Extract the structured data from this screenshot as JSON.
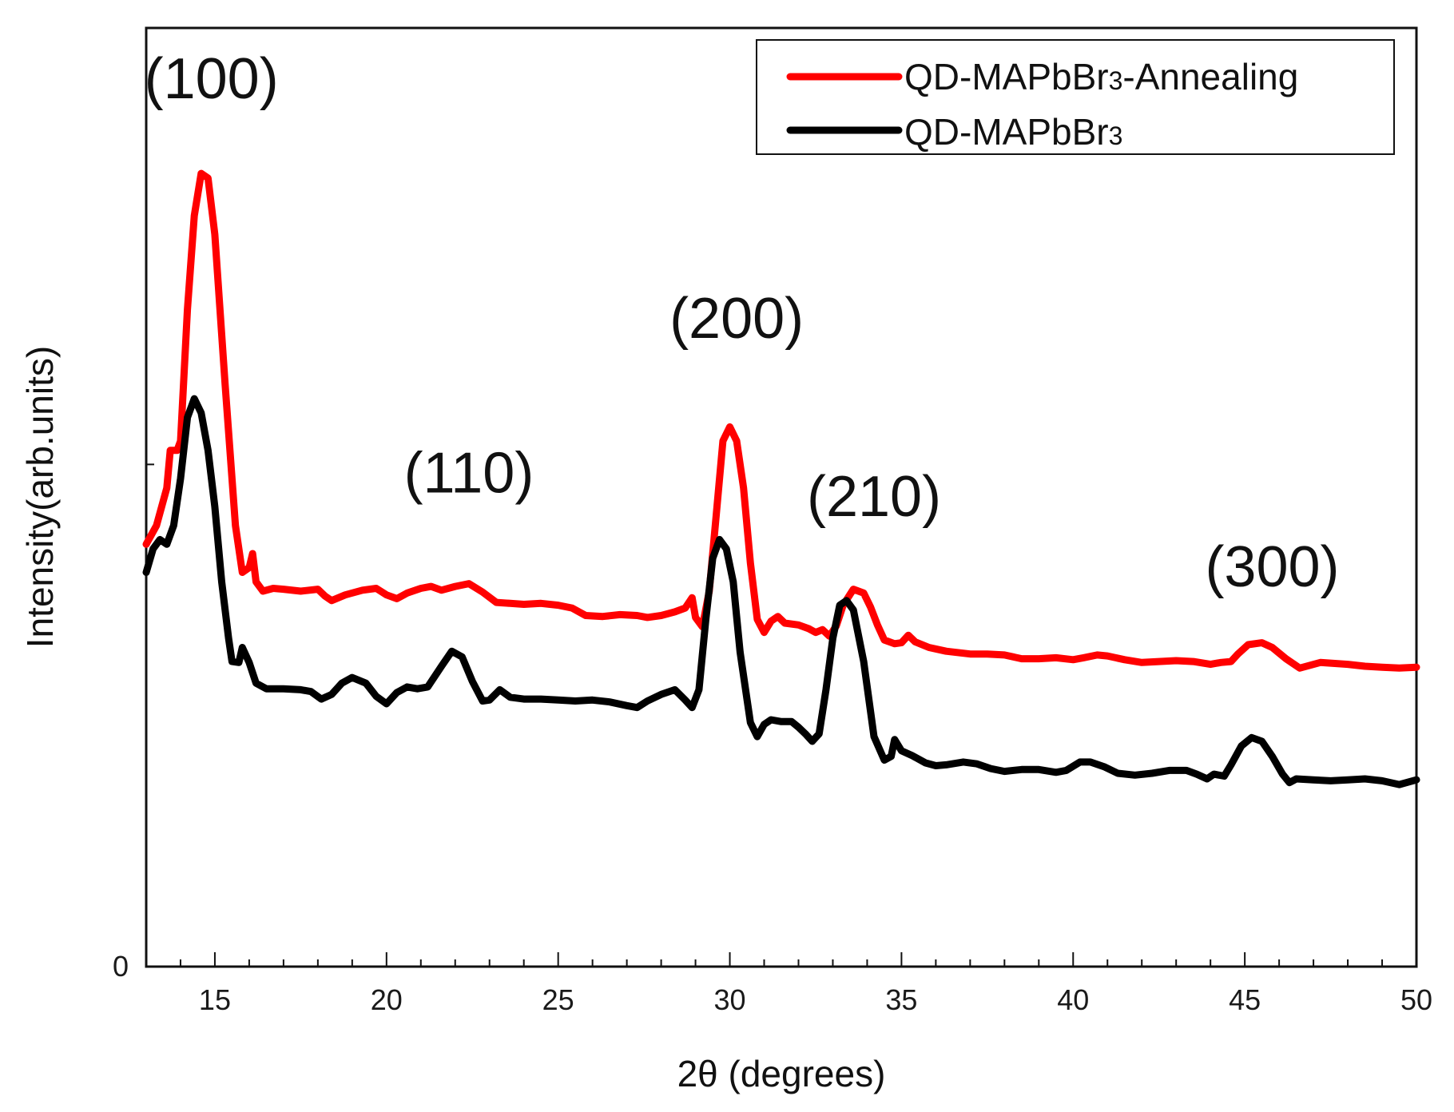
{
  "chart_data": {
    "type": "line",
    "title": "",
    "xlabel": "2θ (degrees)",
    "ylabel": "Intensity(arb.units)",
    "xlim": [
      13,
      50
    ],
    "ylim": [
      0,
      100
    ],
    "x_ticks": [
      15,
      20,
      25,
      30,
      35,
      40,
      45,
      50
    ],
    "y_ticks": [
      {
        "value": 0,
        "label": "0"
      },
      {
        "value": 53.5,
        "label": ""
      }
    ],
    "grid": false,
    "legend_position": "top-right",
    "series": [
      {
        "name": "QD-MAPbBr3-Annealing",
        "legend_main": "QD-MAPbBr",
        "legend_sub": "3",
        "legend_tail": "-Annealing",
        "color": "#ff0000",
        "points": [
          [
            13.0,
            45
          ],
          [
            13.3,
            47
          ],
          [
            13.6,
            51
          ],
          [
            13.7,
            55
          ],
          [
            13.9,
            55
          ],
          [
            14.0,
            56
          ],
          [
            14.2,
            70
          ],
          [
            14.4,
            80
          ],
          [
            14.6,
            84.5
          ],
          [
            14.8,
            84
          ],
          [
            15.0,
            78
          ],
          [
            15.3,
            62
          ],
          [
            15.6,
            47
          ],
          [
            15.8,
            42
          ],
          [
            16.0,
            42.5
          ],
          [
            16.1,
            44
          ],
          [
            16.2,
            41
          ],
          [
            16.4,
            40
          ],
          [
            16.7,
            40.3
          ],
          [
            17.0,
            40.2
          ],
          [
            17.5,
            40
          ],
          [
            18.0,
            40.2
          ],
          [
            18.2,
            39.5
          ],
          [
            18.4,
            39
          ],
          [
            18.8,
            39.6
          ],
          [
            19.3,
            40.1
          ],
          [
            19.7,
            40.3
          ],
          [
            20.0,
            39.6
          ],
          [
            20.3,
            39.2
          ],
          [
            20.6,
            39.8
          ],
          [
            21.0,
            40.3
          ],
          [
            21.3,
            40.5
          ],
          [
            21.6,
            40.1
          ],
          [
            22.0,
            40.5
          ],
          [
            22.4,
            40.8
          ],
          [
            22.8,
            39.9
          ],
          [
            23.2,
            38.8
          ],
          [
            23.6,
            38.7
          ],
          [
            24.0,
            38.6
          ],
          [
            24.5,
            38.7
          ],
          [
            25.0,
            38.5
          ],
          [
            25.4,
            38.2
          ],
          [
            25.8,
            37.4
          ],
          [
            26.3,
            37.3
          ],
          [
            26.8,
            37.5
          ],
          [
            27.3,
            37.4
          ],
          [
            27.6,
            37.2
          ],
          [
            28.0,
            37.4
          ],
          [
            28.4,
            37.8
          ],
          [
            28.7,
            38.2
          ],
          [
            28.9,
            39.3
          ],
          [
            29.0,
            37.2
          ],
          [
            29.2,
            36.2
          ],
          [
            29.4,
            40
          ],
          [
            29.6,
            48
          ],
          [
            29.8,
            56
          ],
          [
            30.0,
            57.5
          ],
          [
            30.2,
            56
          ],
          [
            30.4,
            51
          ],
          [
            30.6,
            43
          ],
          [
            30.8,
            37
          ],
          [
            31.0,
            35.6
          ],
          [
            31.2,
            36.8
          ],
          [
            31.4,
            37.3
          ],
          [
            31.6,
            36.6
          ],
          [
            32.0,
            36.4
          ],
          [
            32.3,
            36
          ],
          [
            32.5,
            35.6
          ],
          [
            32.7,
            35.9
          ],
          [
            32.9,
            35.2
          ],
          [
            33.1,
            36.3
          ],
          [
            33.3,
            38.5
          ],
          [
            33.6,
            40.2
          ],
          [
            33.9,
            39.8
          ],
          [
            34.1,
            38.3
          ],
          [
            34.3,
            36.4
          ],
          [
            34.5,
            34.8
          ],
          [
            34.8,
            34.4
          ],
          [
            35.0,
            34.5
          ],
          [
            35.2,
            35.3
          ],
          [
            35.4,
            34.6
          ],
          [
            35.8,
            34
          ],
          [
            36.3,
            33.6
          ],
          [
            37.0,
            33.3
          ],
          [
            37.5,
            33.3
          ],
          [
            38.0,
            33.2
          ],
          [
            38.5,
            32.8
          ],
          [
            39.0,
            32.8
          ],
          [
            39.5,
            32.9
          ],
          [
            40.0,
            32.7
          ],
          [
            40.3,
            32.9
          ],
          [
            40.7,
            33.2
          ],
          [
            41.0,
            33.1
          ],
          [
            41.5,
            32.7
          ],
          [
            42.0,
            32.4
          ],
          [
            42.5,
            32.5
          ],
          [
            43.0,
            32.6
          ],
          [
            43.5,
            32.5
          ],
          [
            44.0,
            32.2
          ],
          [
            44.3,
            32.4
          ],
          [
            44.6,
            32.5
          ],
          [
            44.8,
            33.3
          ],
          [
            45.1,
            34.3
          ],
          [
            45.5,
            34.5
          ],
          [
            45.8,
            34
          ],
          [
            46.2,
            32.8
          ],
          [
            46.6,
            31.8
          ],
          [
            46.9,
            32.1
          ],
          [
            47.2,
            32.4
          ],
          [
            48.0,
            32.2
          ],
          [
            48.5,
            32
          ],
          [
            49.0,
            31.9
          ],
          [
            49.5,
            31.8
          ],
          [
            50.0,
            31.9
          ]
        ]
      },
      {
        "name": "QD-MAPbBr3",
        "legend_main": "QD-MAPbBr",
        "legend_sub": "3",
        "legend_tail": "",
        "color": "#000000",
        "points": [
          [
            13.0,
            42
          ],
          [
            13.2,
            44.5
          ],
          [
            13.4,
            45.5
          ],
          [
            13.6,
            45
          ],
          [
            13.8,
            47
          ],
          [
            14.0,
            52
          ],
          [
            14.2,
            58.5
          ],
          [
            14.4,
            60.5
          ],
          [
            14.6,
            59
          ],
          [
            14.8,
            55
          ],
          [
            15.0,
            49
          ],
          [
            15.2,
            41
          ],
          [
            15.4,
            35
          ],
          [
            15.5,
            32.5
          ],
          [
            15.7,
            32.4
          ],
          [
            15.8,
            34
          ],
          [
            16.0,
            32.4
          ],
          [
            16.2,
            30.2
          ],
          [
            16.5,
            29.6
          ],
          [
            17.0,
            29.6
          ],
          [
            17.5,
            29.5
          ],
          [
            17.8,
            29.3
          ],
          [
            18.1,
            28.5
          ],
          [
            18.4,
            29
          ],
          [
            18.7,
            30.2
          ],
          [
            19.0,
            30.8
          ],
          [
            19.4,
            30.2
          ],
          [
            19.7,
            28.8
          ],
          [
            20.0,
            28
          ],
          [
            20.3,
            29.2
          ],
          [
            20.6,
            29.8
          ],
          [
            20.9,
            29.6
          ],
          [
            21.2,
            29.8
          ],
          [
            21.6,
            32
          ],
          [
            21.9,
            33.6
          ],
          [
            22.2,
            33
          ],
          [
            22.5,
            30.4
          ],
          [
            22.8,
            28.3
          ],
          [
            23.0,
            28.4
          ],
          [
            23.3,
            29.5
          ],
          [
            23.6,
            28.7
          ],
          [
            24.0,
            28.5
          ],
          [
            24.5,
            28.5
          ],
          [
            25.0,
            28.4
          ],
          [
            25.5,
            28.3
          ],
          [
            26.0,
            28.4
          ],
          [
            26.5,
            28.2
          ],
          [
            27.0,
            27.8
          ],
          [
            27.3,
            27.6
          ],
          [
            27.6,
            28.3
          ],
          [
            28.0,
            29
          ],
          [
            28.4,
            29.5
          ],
          [
            28.7,
            28.4
          ],
          [
            28.9,
            27.6
          ],
          [
            29.1,
            29.5
          ],
          [
            29.3,
            37
          ],
          [
            29.5,
            43.5
          ],
          [
            29.7,
            45.5
          ],
          [
            29.9,
            44.5
          ],
          [
            30.1,
            41
          ],
          [
            30.3,
            33.5
          ],
          [
            30.6,
            26
          ],
          [
            30.8,
            24.5
          ],
          [
            31.0,
            25.8
          ],
          [
            31.2,
            26.3
          ],
          [
            31.5,
            26.1
          ],
          [
            31.8,
            26.1
          ],
          [
            32.0,
            25.5
          ],
          [
            32.2,
            24.8
          ],
          [
            32.4,
            24
          ],
          [
            32.6,
            24.8
          ],
          [
            32.8,
            29.5
          ],
          [
            33.0,
            35
          ],
          [
            33.2,
            38.5
          ],
          [
            33.4,
            39
          ],
          [
            33.6,
            38
          ],
          [
            33.9,
            32.5
          ],
          [
            34.2,
            24.5
          ],
          [
            34.5,
            22
          ],
          [
            34.7,
            22.4
          ],
          [
            34.8,
            24.2
          ],
          [
            35.0,
            23
          ],
          [
            35.3,
            22.5
          ],
          [
            35.7,
            21.7
          ],
          [
            36.0,
            21.4
          ],
          [
            36.3,
            21.5
          ],
          [
            36.8,
            21.8
          ],
          [
            37.2,
            21.6
          ],
          [
            37.6,
            21.1
          ],
          [
            38.0,
            20.8
          ],
          [
            38.5,
            21
          ],
          [
            39.0,
            21
          ],
          [
            39.5,
            20.7
          ],
          [
            39.8,
            20.9
          ],
          [
            40.2,
            21.8
          ],
          [
            40.5,
            21.8
          ],
          [
            40.9,
            21.3
          ],
          [
            41.3,
            20.6
          ],
          [
            41.8,
            20.4
          ],
          [
            42.3,
            20.6
          ],
          [
            42.8,
            20.9
          ],
          [
            43.3,
            20.9
          ],
          [
            43.6,
            20.5
          ],
          [
            43.9,
            20
          ],
          [
            44.1,
            20.5
          ],
          [
            44.4,
            20.3
          ],
          [
            44.6,
            21.5
          ],
          [
            44.9,
            23.5
          ],
          [
            45.2,
            24.4
          ],
          [
            45.5,
            24
          ],
          [
            45.8,
            22.4
          ],
          [
            46.1,
            20.5
          ],
          [
            46.3,
            19.6
          ],
          [
            46.5,
            20
          ],
          [
            47.0,
            19.9
          ],
          [
            47.5,
            19.8
          ],
          [
            48.0,
            19.9
          ],
          [
            48.5,
            20
          ],
          [
            49.0,
            19.8
          ],
          [
            49.5,
            19.4
          ],
          [
            50.0,
            19.9
          ]
        ]
      }
    ],
    "annotations": [
      {
        "text": "(100)",
        "x": 14.9,
        "y": 92.5
      },
      {
        "text": "(110)",
        "x": 22.4,
        "y": 50.5
      },
      {
        "text": "(200)",
        "x": 30.2,
        "y": 67
      },
      {
        "text": "(210)",
        "x": 34.2,
        "y": 48
      },
      {
        "text": "(300)",
        "x": 45.8,
        "y": 40.5
      }
    ]
  }
}
